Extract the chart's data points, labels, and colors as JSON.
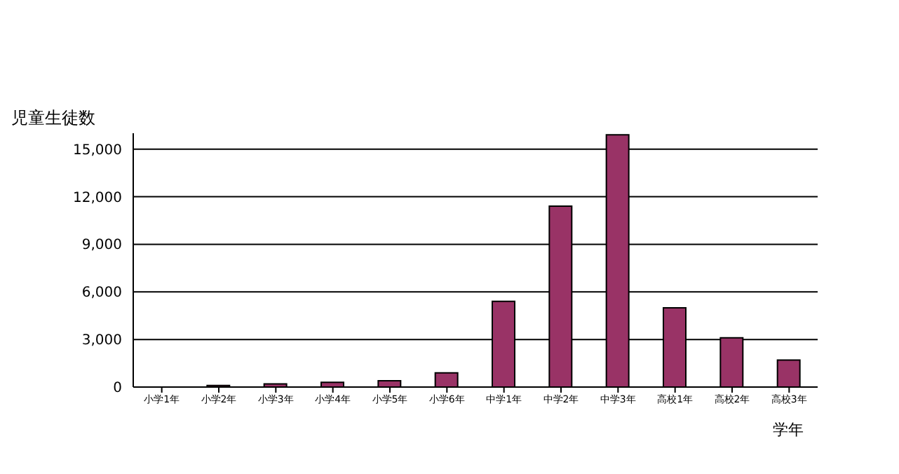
{
  "chart_data": {
    "type": "bar",
    "xlabel": "学年",
    "ylabel": "児童生徒数",
    "categories": [
      "小学1年",
      "小学2年",
      "小学3年",
      "小学4年",
      "小学5年",
      "小学6年",
      "中学1年",
      "中学2年",
      "中学3年",
      "高校1年",
      "高校2年",
      "高校3年"
    ],
    "values": [
      0,
      100,
      200,
      300,
      400,
      900,
      5400,
      11400,
      15900,
      5000,
      3100,
      1700
    ],
    "color": "#993366",
    "ylim": [
      0,
      16000
    ],
    "yticks": [
      0,
      {
        "value": 3000,
        "label": "3,000"
      },
      {
        "value": 6000,
        "label": "6,000"
      },
      {
        "value": 9000,
        "label": "9,000"
      },
      {
        "value": 12000,
        "label": "12,000"
      },
      {
        "value": 15000,
        "label": "15,000"
      }
    ],
    "grid": "y"
  }
}
